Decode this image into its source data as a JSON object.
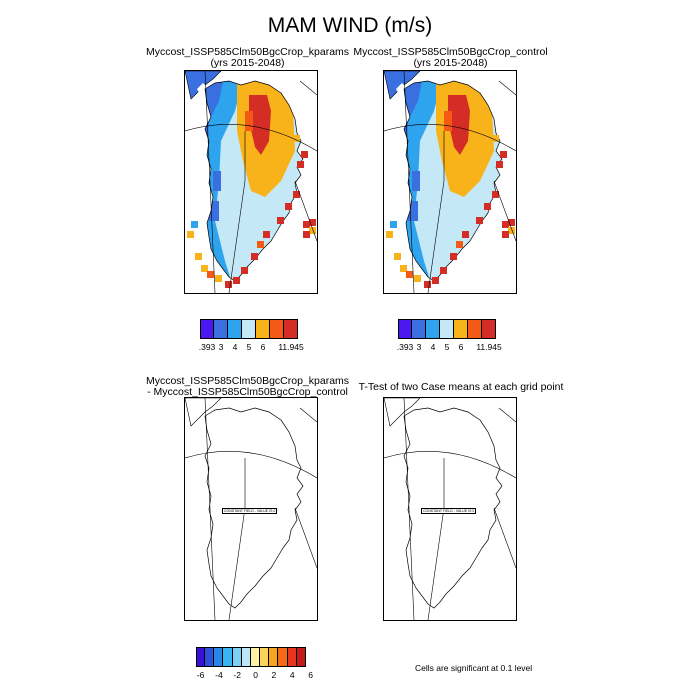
{
  "title": "MAM WIND (m/s)",
  "panels": {
    "top_left": {
      "line1": "Myccost_ISSP585Clm50BgcCrop_kparams",
      "line2": "(yrs 2015-2048)"
    },
    "top_right": {
      "line1": "Myccost_ISSP585Clm50BgcCrop_control",
      "line2": "(yrs 2015-2048)"
    },
    "bottom_left": {
      "line1": "Myccost_ISSP585Clm50BgcCrop_kparams",
      "line2": "- Myccost_ISSP585Clm50BgcCrop_control",
      "field_box": "CONSTANT FIELD - VALUE IS 0"
    },
    "bottom_right": {
      "line1": "T-Test of two Case means at each grid point",
      "field_box": "CONSTANT FIELD - VALUE IS 0"
    }
  },
  "significance_note": "Cells are significant at 0.1 level",
  "chart_data": [
    {
      "type": "heatmap",
      "title": "Myccost_ISSP585Clm50BgcCrop_kparams",
      "subtitle": "(yrs 2015-2048)",
      "colorbar": {
        "colors": [
          "#4b19f0",
          "#3a6fe0",
          "#2fa4ee",
          "#c4e8f6",
          "#f8b21a",
          "#f45a15",
          "#d42d25"
        ],
        "labels": [
          ".393",
          "3",
          "4",
          "5",
          "6",
          "11.945"
        ]
      }
    },
    {
      "type": "heatmap",
      "title": "Myccost_ISSP585Clm50BgcCrop_control",
      "subtitle": "(yrs 2015-2048)",
      "colorbar": {
        "colors": [
          "#4b19f0",
          "#3a6fe0",
          "#2fa4ee",
          "#c4e8f6",
          "#f8b21a",
          "#f45a15",
          "#d42d25"
        ],
        "labels": [
          ".393",
          "3",
          "4",
          "5",
          "6",
          "11.945"
        ]
      }
    },
    {
      "type": "heatmap",
      "title": "Myccost_ISSP585Clm50BgcCrop_kparams - Myccost_ISSP585Clm50BgcCrop_control",
      "annotation": "CONSTANT FIELD - VALUE IS 0",
      "colorbar": {
        "colors": [
          "#3a10d8",
          "#2d4fdc",
          "#2a86e6",
          "#38b4f2",
          "#7ed1f6",
          "#bde7f8",
          "#fff3a8",
          "#fcd35a",
          "#f9a41e",
          "#f56a14",
          "#e7361d",
          "#c41a1a"
        ],
        "labels": [
          "-6",
          "-4",
          "-2",
          "0",
          "2",
          "4",
          "6"
        ]
      }
    },
    {
      "type": "heatmap",
      "title": "T-Test of two Case means at each grid point",
      "annotation": "CONSTANT FIELD - VALUE IS 0",
      "note": "Cells are significant at 0.1 level"
    }
  ]
}
